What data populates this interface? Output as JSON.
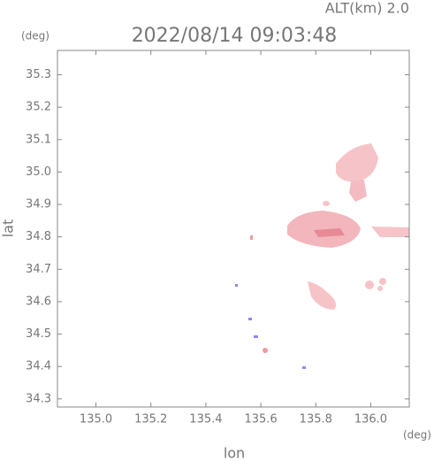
{
  "chart_data": {
    "type": "radar-map",
    "title": "2022/08/14 09:03:48",
    "subtitle": "ALT(km) 2.0",
    "x_label": "lon",
    "y_label": "lat",
    "x_unit": "(deg)",
    "y_unit": "(deg)",
    "xlim": [
      134.86,
      136.14
    ],
    "ylim": [
      34.275,
      35.375
    ],
    "xticks": [
      {
        "value": 135,
        "label": "135.0"
      },
      135.2,
      135.4,
      135.6,
      135.8,
      {
        "value": 136,
        "label": "136.0"
      }
    ],
    "yticks": [
      35.3,
      35.2,
      35.1,
      {
        "value": 35,
        "label": "35.0"
      },
      34.9,
      34.8,
      34.7,
      34.6,
      34.5,
      34.4,
      34.3
    ]
  }
}
